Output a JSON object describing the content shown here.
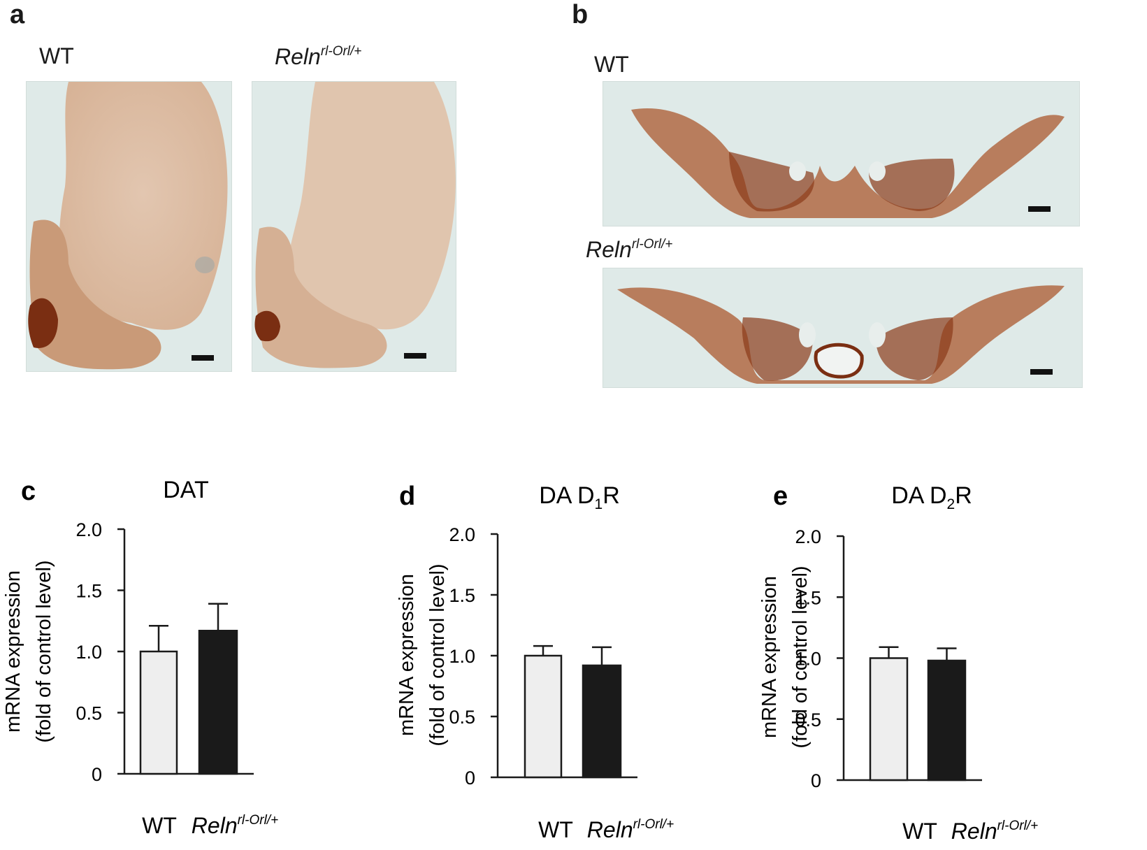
{
  "panels": {
    "a": {
      "letter": "a",
      "wt_label": "WT",
      "mut_label": {
        "base": "Reln",
        "sup": "rl-Orl/+"
      }
    },
    "b": {
      "letter": "b",
      "wt_label": "WT",
      "mut_label": {
        "base": "Reln",
        "sup": "rl-Orl/+"
      }
    }
  },
  "colors": {
    "wt_bar": "#eeeeee",
    "mut_bar": "#1a1a1a",
    "axis": "#1a1a1a",
    "stain_dark": "#8a3a1a",
    "stain_light": "#d9b9a0",
    "background_tissue": "#dfeae8"
  },
  "chart_data": [
    {
      "letter": "c",
      "type": "bar",
      "title": {
        "base": "DAT",
        "sub": ""
      },
      "ylabel": [
        "mRNA expression",
        "(fold of control level)"
      ],
      "ylim": [
        0,
        2.0
      ],
      "yticks": [
        "0",
        "0.5",
        "1.0",
        "1.5",
        "2.0"
      ],
      "categories": [
        {
          "base": "WT",
          "sup": ""
        },
        {
          "base": "Reln",
          "sup": "rl-Orl/+"
        }
      ],
      "values": [
        1.0,
        1.17
      ],
      "errors": [
        0.21,
        0.22
      ]
    },
    {
      "letter": "d",
      "type": "bar",
      "title": {
        "base": "DA D",
        "sub": "1",
        "end": "R"
      },
      "ylabel": [
        "mRNA expression",
        "(fold of control level)"
      ],
      "ylim": [
        0,
        2.0
      ],
      "yticks": [
        "0",
        "0.5",
        "1.0",
        "1.5",
        "2.0"
      ],
      "categories": [
        {
          "base": "WT",
          "sup": ""
        },
        {
          "base": "Reln",
          "sup": "rl-Orl/+"
        }
      ],
      "values": [
        1.0,
        0.92
      ],
      "errors": [
        0.08,
        0.15
      ]
    },
    {
      "letter": "e",
      "type": "bar",
      "title": {
        "base": "DA D",
        "sub": "2",
        "end": "R"
      },
      "ylabel": [
        "mRNA expression",
        "(fold of control level)"
      ],
      "ylim": [
        0,
        2.0
      ],
      "yticks": [
        "0",
        "0.5",
        "1.0",
        "1.5",
        "2.0"
      ],
      "categories": [
        {
          "base": "WT",
          "sup": ""
        },
        {
          "base": "Reln",
          "sup": "rl-Orl/+"
        }
      ],
      "values": [
        1.0,
        0.98
      ],
      "errors": [
        0.09,
        0.1
      ]
    }
  ]
}
